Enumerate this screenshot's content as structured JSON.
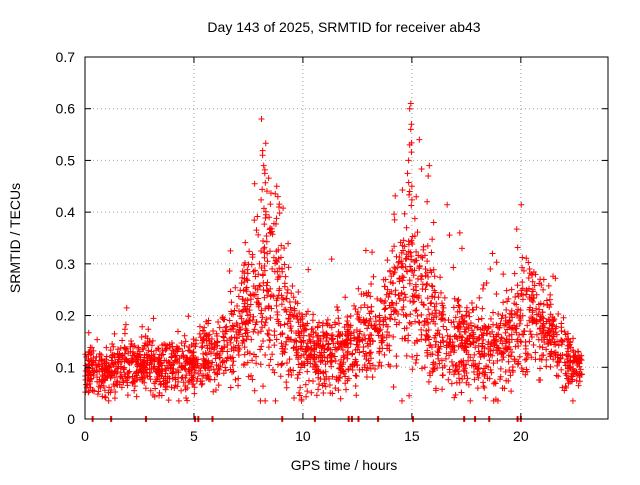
{
  "chart_data": {
    "type": "scatter",
    "title": "Day 143 of 2025, SRMTID for receiver ab43",
    "xlabel": "GPS time / hours",
    "ylabel": "SRMTID / TECUs",
    "xlim": [
      0,
      24
    ],
    "ylim": [
      0,
      0.7
    ],
    "xticks": [
      0,
      5,
      10,
      15,
      20
    ],
    "xtick_labels": [
      "0",
      "5",
      "10",
      "15",
      "20"
    ],
    "yticks": [
      0,
      0.1,
      0.2,
      0.3,
      0.4,
      0.5,
      0.6,
      0.7
    ],
    "ytick_labels": [
      "0",
      "0.1",
      "0.2",
      "0.3",
      "0.4",
      "0.5",
      "0.6",
      "0.7"
    ],
    "grid": true,
    "marker": "+",
    "color": "#ff0000",
    "series": [
      {
        "name": "SRMTID",
        "profile": {
          "x": [
            0,
            1,
            2,
            3,
            4,
            5,
            6,
            6.5,
            7,
            7.5,
            8,
            8.3,
            8.6,
            9,
            9.5,
            10,
            11,
            12,
            12.5,
            13,
            13.5,
            14,
            14.5,
            15,
            15.3,
            15.7,
            16,
            16.5,
            17,
            17.5,
            18,
            18.5,
            19,
            19.5,
            20,
            20.5,
            21,
            21.5,
            22,
            22.5,
            22.8
          ],
          "center": [
            0.09,
            0.09,
            0.1,
            0.1,
            0.1,
            0.11,
            0.12,
            0.14,
            0.17,
            0.2,
            0.23,
            0.25,
            0.24,
            0.21,
            0.16,
            0.13,
            0.12,
            0.12,
            0.15,
            0.17,
            0.17,
            0.2,
            0.23,
            0.25,
            0.24,
            0.2,
            0.18,
            0.15,
            0.14,
            0.14,
            0.13,
            0.14,
            0.14,
            0.15,
            0.18,
            0.2,
            0.17,
            0.15,
            0.12,
            0.1,
            0.09
          ],
          "spread": [
            0.03,
            0.035,
            0.035,
            0.035,
            0.035,
            0.04,
            0.04,
            0.05,
            0.07,
            0.09,
            0.12,
            0.14,
            0.12,
            0.1,
            0.06,
            0.05,
            0.05,
            0.05,
            0.05,
            0.06,
            0.06,
            0.08,
            0.1,
            0.12,
            0.1,
            0.09,
            0.08,
            0.06,
            0.06,
            0.06,
            0.06,
            0.06,
            0.06,
            0.06,
            0.07,
            0.07,
            0.06,
            0.05,
            0.04,
            0.03,
            0.02
          ]
        },
        "highlights": [
          {
            "x": 8.1,
            "y": 0.58
          },
          {
            "x": 8.15,
            "y": 0.51
          },
          {
            "x": 8.2,
            "y": 0.49
          },
          {
            "x": 8.25,
            "y": 0.475
          },
          {
            "x": 8.8,
            "y": 0.45
          },
          {
            "x": 8.85,
            "y": 0.43
          },
          {
            "x": 8.9,
            "y": 0.41
          },
          {
            "x": 14.95,
            "y": 0.61
          },
          {
            "x": 14.9,
            "y": 0.6
          },
          {
            "x": 14.98,
            "y": 0.57
          },
          {
            "x": 14.95,
            "y": 0.56
          },
          {
            "x": 14.9,
            "y": 0.53
          },
          {
            "x": 14.85,
            "y": 0.5
          },
          {
            "x": 14.8,
            "y": 0.475
          },
          {
            "x": 15.0,
            "y": 0.45
          },
          {
            "x": 14.9,
            "y": 0.44
          },
          {
            "x": 15.8,
            "y": 0.49
          },
          {
            "x": 15.75,
            "y": 0.47
          },
          {
            "x": 15.7,
            "y": 0.42
          },
          {
            "x": 16.0,
            "y": 0.38
          },
          {
            "x": 17.2,
            "y": 0.36
          },
          {
            "x": 17.3,
            "y": 0.33
          },
          {
            "x": 18.7,
            "y": 0.32
          },
          {
            "x": 18.6,
            "y": 0.29
          },
          {
            "x": 20.4,
            "y": 0.29
          },
          {
            "x": 20.5,
            "y": 0.28
          }
        ],
        "baseline_marks_x": [
          0.35,
          1.2,
          2.8,
          5.05,
          5.2,
          5.85,
          9.05,
          10.55,
          12.1,
          12.25,
          12.55,
          13.45,
          15.05,
          17.4,
          17.9,
          18.55,
          19.85,
          20.0
        ]
      }
    ]
  }
}
